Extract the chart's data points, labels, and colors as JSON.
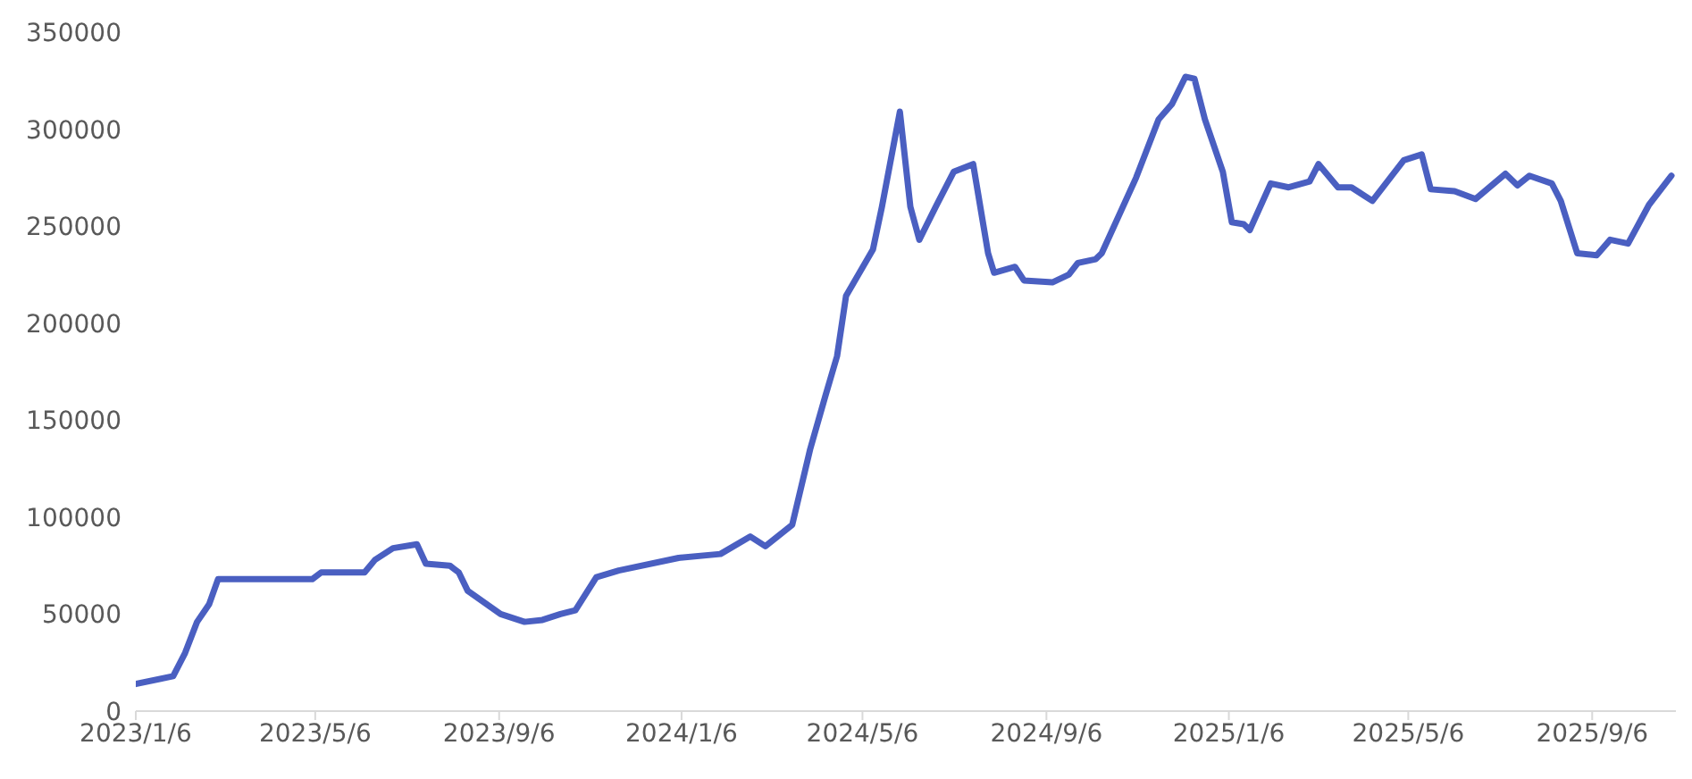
{
  "chart_data": {
    "type": "line",
    "x": [
      "2023-01-06",
      "2023-01-31",
      "2023-02-08",
      "2023-02-16",
      "2023-02-24",
      "2023-03-02",
      "2023-05-04",
      "2023-05-10",
      "2023-06-08",
      "2023-06-15",
      "2023-06-27",
      "2023-07-13",
      "2023-07-19",
      "2023-08-04",
      "2023-08-10",
      "2023-08-16",
      "2023-09-07",
      "2023-09-23",
      "2023-10-05",
      "2023-10-17",
      "2023-10-27",
      "2023-11-10",
      "2023-11-25",
      "2024-01-04",
      "2024-02-01",
      "2024-02-21",
      "2024-03-02",
      "2024-03-20",
      "2024-04-01",
      "2024-04-11",
      "2024-04-19",
      "2024-04-25",
      "2024-05-13",
      "2024-05-19",
      "2024-05-31",
      "2024-06-07",
      "2024-06-13",
      "2024-06-24",
      "2024-07-06",
      "2024-07-19",
      "2024-07-29",
      "2024-08-02",
      "2024-08-16",
      "2024-08-22",
      "2024-09-10",
      "2024-09-21",
      "2024-09-27",
      "2024-10-09",
      "2024-10-13",
      "2024-11-05",
      "2024-11-20",
      "2024-11-29",
      "2024-12-08",
      "2024-12-14",
      "2024-12-21",
      "2025-01-02",
      "2025-01-08",
      "2025-01-16",
      "2025-01-20",
      "2025-02-03",
      "2025-02-15",
      "2025-03-01",
      "2025-03-07",
      "2025-03-20",
      "2025-03-29",
      "2025-04-12",
      "2025-05-03",
      "2025-05-15",
      "2025-05-21",
      "2025-06-06",
      "2025-06-20",
      "2025-07-10",
      "2025-07-18",
      "2025-07-26",
      "2025-08-10",
      "2025-08-16",
      "2025-08-27",
      "2025-09-09",
      "2025-09-18",
      "2025-09-30",
      "2025-10-14",
      "2025-10-29"
    ],
    "series": [
      {
        "color": "#4a5fc1",
        "values": [
          14000,
          18000,
          30000,
          46000,
          55000,
          68000,
          68000,
          71500,
          71500,
          78000,
          84000,
          86000,
          76000,
          75000,
          71500,
          62000,
          50000,
          46000,
          47000,
          50000,
          52000,
          69000,
          72500,
          79000,
          81000,
          90000,
          85000,
          96000,
          135000,
          162000,
          183000,
          214000,
          238000,
          260000,
          309000,
          260000,
          243000,
          260000,
          278000,
          282000,
          236000,
          226000,
          229000,
          222000,
          221000,
          225000,
          231000,
          233000,
          236000,
          275000,
          305000,
          313000,
          327000,
          326000,
          305000,
          278000,
          252000,
          251000,
          248000,
          272000,
          270000,
          273000,
          282000,
          270000,
          270000,
          263000,
          284000,
          287000,
          269000,
          268000,
          264000,
          277000,
          271000,
          276000,
          272000,
          263000,
          236000,
          235000,
          243000,
          241000,
          261000,
          276000
        ]
      }
    ],
    "xlim": [
      "2023-01-06",
      "2025-11-01"
    ],
    "xticks": [
      {
        "value": "2023-01-06",
        "label": "2023/1/6"
      },
      {
        "value": "2023-05-06",
        "label": "2023/5/6"
      },
      {
        "value": "2023-09-06",
        "label": "2023/9/6"
      },
      {
        "value": "2024-01-06",
        "label": "2024/1/6"
      },
      {
        "value": "2024-05-06",
        "label": "2024/5/6"
      },
      {
        "value": "2024-09-06",
        "label": "2024/9/6"
      },
      {
        "value": "2025-01-06",
        "label": "2025/1/6"
      },
      {
        "value": "2025-05-06",
        "label": "2025/5/6"
      },
      {
        "value": "2025-09-06",
        "label": "2025/9/6"
      }
    ],
    "ylim": [
      0,
      350000
    ],
    "yticks": [
      0,
      50000,
      100000,
      150000,
      200000,
      250000,
      300000,
      350000
    ],
    "grid": false,
    "legend": false,
    "marker": "none",
    "line_style": "solid"
  }
}
